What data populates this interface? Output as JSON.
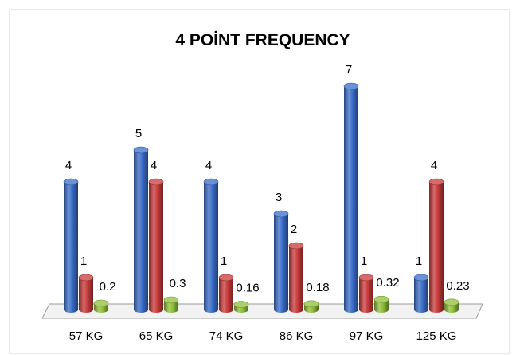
{
  "chart_data": {
    "type": "bar",
    "title": "4 POİNT FREQUENCY",
    "categories": [
      "57 KG",
      "65 KG",
      "74 KG",
      "86 KG",
      "97 KG",
      "125 KG"
    ],
    "series": [
      {
        "values": [
          4,
          5,
          4,
          3,
          7,
          1
        ],
        "color": "#3a6cc8"
      },
      {
        "values": [
          1,
          4,
          1,
          2,
          1,
          4
        ],
        "color": "#c83a3a"
      },
      {
        "values": [
          0.2,
          0.3,
          0.16,
          0.18,
          0.32,
          0.23
        ],
        "color": "#8fbf3a"
      }
    ],
    "data_labels": [
      [
        "4",
        "5",
        "4",
        "3",
        "7",
        "1"
      ],
      [
        "1",
        "4",
        "1",
        "2",
        "1",
        "4"
      ],
      [
        "0.2",
        "0.3",
        "0.16",
        "0.18",
        "0.32",
        "0.23"
      ]
    ],
    "ylim": [
      0,
      7
    ],
    "legend": "none",
    "grid": false,
    "style": "3d-cylinder"
  }
}
